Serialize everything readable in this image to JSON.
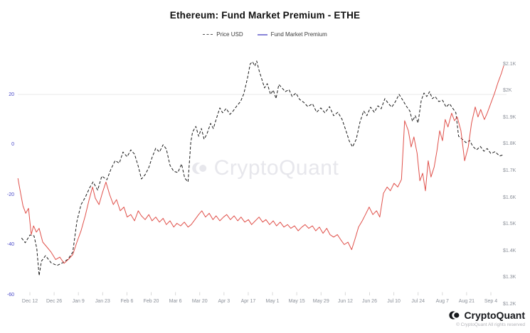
{
  "chart": {
    "title": "Ethereum: Fund Market Premium - ETHE"
  },
  "watermark": {
    "text": "CryptoQuant"
  },
  "footer": {
    "brand": "CryptoQuant",
    "copyright": "© CryptoQuant All rights reserved"
  },
  "colors": {
    "price_line": "#1a1a1a",
    "premium_line": "#e0504a",
    "legend_price_dash": "#555555",
    "legend_premium_dash": "#8884d8",
    "axis_left_text": "#4545c8",
    "axis_right_text": "#8a8f98",
    "gridline": "#e9e9e9",
    "tick_mark": "#d8d8d8",
    "watermark": "#e7e7ec"
  },
  "chart_data": {
    "type": "line",
    "title": "Ethereum: Fund Market Premium - ETHE",
    "legend_position": "top-center",
    "grid": "single horizontal gridline at premium = 20",
    "gridline_value": 20,
    "x": {
      "ticks": [
        "Dec 12",
        "Dec 26",
        "Jan 9",
        "Jan 23",
        "Feb 6",
        "Feb 20",
        "Mar 6",
        "Mar 20",
        "Apr 3",
        "Apr 17",
        "May 1",
        "May 15",
        "May 29",
        "Jun 12",
        "Jun 26",
        "Jul 10",
        "Jul 24",
        "Aug 7",
        "Aug 21",
        "Sep 4"
      ]
    },
    "y_left": {
      "label": "Fund Market Premium (%)",
      "range": [
        -65,
        25
      ],
      "ticks": [
        {
          "label": "20",
          "value": 20
        },
        {
          "label": "0",
          "value": 0
        },
        {
          "label": "-20",
          "value": -20
        },
        {
          "label": "-40",
          "value": -40
        },
        {
          "label": "-60",
          "value": -60
        }
      ]
    },
    "y_right": {
      "label": "Price USD",
      "range": [
        1150,
        2150
      ],
      "ticks": [
        {
          "label": "$2.1K",
          "value": 2100
        },
        {
          "label": "$2K",
          "value": 2000
        },
        {
          "label": "$1.9K",
          "value": 1900
        },
        {
          "label": "$1.8K",
          "value": 1800
        },
        {
          "label": "$1.7K",
          "value": 1700
        },
        {
          "label": "$1.6K",
          "value": 1600
        },
        {
          "label": "$1.5K",
          "value": 1500
        },
        {
          "label": "$1.4K",
          "value": 1400
        },
        {
          "label": "$1.3K",
          "value": 1300
        },
        {
          "label": "$1.2K",
          "value": 1200
        }
      ]
    },
    "series": [
      {
        "name": "Price USD",
        "axis": "right",
        "color": "#1a1a1a",
        "dash": true,
        "points": [
          [
            -0.018,
            1448
          ],
          [
            -0.01,
            1430
          ],
          [
            0.0,
            1459
          ],
          [
            0.009,
            1456
          ],
          [
            0.015,
            1409
          ],
          [
            0.02,
            1307
          ],
          [
            0.025,
            1361
          ],
          [
            0.034,
            1382
          ],
          [
            0.046,
            1355
          ],
          [
            0.059,
            1345
          ],
          [
            0.071,
            1355
          ],
          [
            0.083,
            1369
          ],
          [
            0.093,
            1395
          ],
          [
            0.102,
            1510
          ],
          [
            0.111,
            1573
          ],
          [
            0.12,
            1600
          ],
          [
            0.13,
            1637
          ],
          [
            0.137,
            1658
          ],
          [
            0.147,
            1627
          ],
          [
            0.156,
            1680
          ],
          [
            0.167,
            1666
          ],
          [
            0.176,
            1706
          ],
          [
            0.185,
            1738
          ],
          [
            0.194,
            1728
          ],
          [
            0.202,
            1770
          ],
          [
            0.211,
            1752
          ],
          [
            0.219,
            1778
          ],
          [
            0.227,
            1762
          ],
          [
            0.235,
            1717
          ],
          [
            0.242,
            1669
          ],
          [
            0.25,
            1685
          ],
          [
            0.258,
            1712
          ],
          [
            0.265,
            1749
          ],
          [
            0.273,
            1784
          ],
          [
            0.281,
            1770
          ],
          [
            0.289,
            1797
          ],
          [
            0.296,
            1781
          ],
          [
            0.304,
            1720
          ],
          [
            0.312,
            1698
          ],
          [
            0.321,
            1693
          ],
          [
            0.329,
            1725
          ],
          [
            0.336,
            1672
          ],
          [
            0.343,
            1658
          ],
          [
            0.349,
            1807
          ],
          [
            0.353,
            1845
          ],
          [
            0.36,
            1866
          ],
          [
            0.366,
            1829
          ],
          [
            0.372,
            1858
          ],
          [
            0.378,
            1818
          ],
          [
            0.384,
            1837
          ],
          [
            0.392,
            1877
          ],
          [
            0.398,
            1858
          ],
          [
            0.406,
            1903
          ],
          [
            0.412,
            1935
          ],
          [
            0.418,
            1917
          ],
          [
            0.426,
            1933
          ],
          [
            0.434,
            1911
          ],
          [
            0.441,
            1924
          ],
          [
            0.449,
            1943
          ],
          [
            0.457,
            1959
          ],
          [
            0.464,
            1988
          ],
          [
            0.472,
            2047
          ],
          [
            0.478,
            2100
          ],
          [
            0.483,
            2108
          ],
          [
            0.488,
            2092
          ],
          [
            0.492,
            2111
          ],
          [
            0.497,
            2076
          ],
          [
            0.503,
            2044
          ],
          [
            0.509,
            2010
          ],
          [
            0.515,
            2026
          ],
          [
            0.522,
            1986
          ],
          [
            0.528,
            2002
          ],
          [
            0.534,
            1970
          ],
          [
            0.54,
            2023
          ],
          [
            0.546,
            2012
          ],
          [
            0.554,
            1996
          ],
          [
            0.562,
            2004
          ],
          [
            0.569,
            1978
          ],
          [
            0.577,
            1991
          ],
          [
            0.585,
            1967
          ],
          [
            0.594,
            1956
          ],
          [
            0.603,
            1940
          ],
          [
            0.613,
            1951
          ],
          [
            0.622,
            1919
          ],
          [
            0.631,
            1935
          ],
          [
            0.64,
            1917
          ],
          [
            0.65,
            1940
          ],
          [
            0.659,
            1906
          ],
          [
            0.668,
            1919
          ],
          [
            0.677,
            1893
          ],
          [
            0.685,
            1853
          ],
          [
            0.693,
            1810
          ],
          [
            0.7,
            1789
          ],
          [
            0.708,
            1818
          ],
          [
            0.716,
            1882
          ],
          [
            0.724,
            1924
          ],
          [
            0.731,
            1906
          ],
          [
            0.739,
            1938
          ],
          [
            0.747,
            1919
          ],
          [
            0.755,
            1943
          ],
          [
            0.762,
            1932
          ],
          [
            0.77,
            1970
          ],
          [
            0.778,
            1951
          ],
          [
            0.785,
            1938
          ],
          [
            0.793,
            1959
          ],
          [
            0.801,
            1986
          ],
          [
            0.809,
            1964
          ],
          [
            0.816,
            1943
          ],
          [
            0.824,
            1924
          ],
          [
            0.83,
            1885
          ],
          [
            0.836,
            1906
          ],
          [
            0.842,
            1879
          ],
          [
            0.849,
            1964
          ],
          [
            0.855,
            1991
          ],
          [
            0.861,
            1978
          ],
          [
            0.867,
            1996
          ],
          [
            0.873,
            1970
          ],
          [
            0.879,
            1978
          ],
          [
            0.887,
            1959
          ],
          [
            0.895,
            1964
          ],
          [
            0.903,
            1938
          ],
          [
            0.91,
            1951
          ],
          [
            0.918,
            1932
          ],
          [
            0.924,
            1917
          ],
          [
            0.93,
            1829
          ],
          [
            0.938,
            1818
          ],
          [
            0.946,
            1805
          ],
          [
            0.954,
            1813
          ],
          [
            0.961,
            1791
          ],
          [
            0.969,
            1778
          ],
          [
            0.977,
            1791
          ],
          [
            0.985,
            1773
          ],
          [
            0.992,
            1783
          ],
          [
            1.0,
            1764
          ],
          [
            1.009,
            1771
          ],
          [
            1.019,
            1755
          ],
          [
            1.028,
            1760
          ]
        ]
      },
      {
        "name": "Fund Market Premium",
        "axis": "left",
        "color": "#e0504a",
        "dash": false,
        "points": [
          [
            -0.026,
            -13.5
          ],
          [
            -0.022,
            -17.5
          ],
          [
            -0.015,
            -24.5
          ],
          [
            -0.009,
            -27.5
          ],
          [
            -0.003,
            -25.5
          ],
          [
            0.003,
            -36
          ],
          [
            0.008,
            -32.5
          ],
          [
            0.014,
            -35
          ],
          [
            0.02,
            -33.5
          ],
          [
            0.028,
            -39
          ],
          [
            0.037,
            -41
          ],
          [
            0.046,
            -43
          ],
          [
            0.056,
            -46
          ],
          [
            0.065,
            -45
          ],
          [
            0.074,
            -47.5
          ],
          [
            0.083,
            -46
          ],
          [
            0.093,
            -44
          ],
          [
            0.102,
            -39
          ],
          [
            0.111,
            -34.5
          ],
          [
            0.12,
            -28.5
          ],
          [
            0.128,
            -22.5
          ],
          [
            0.136,
            -17
          ],
          [
            0.142,
            -21.5
          ],
          [
            0.15,
            -24
          ],
          [
            0.157,
            -19.5
          ],
          [
            0.165,
            -15
          ],
          [
            0.173,
            -20
          ],
          [
            0.181,
            -24
          ],
          [
            0.188,
            -22
          ],
          [
            0.196,
            -26.5
          ],
          [
            0.204,
            -25
          ],
          [
            0.211,
            -29
          ],
          [
            0.219,
            -28
          ],
          [
            0.227,
            -30.5
          ],
          [
            0.235,
            -26.5
          ],
          [
            0.242,
            -28.5
          ],
          [
            0.25,
            -30
          ],
          [
            0.258,
            -28
          ],
          [
            0.265,
            -30.5
          ],
          [
            0.273,
            -29
          ],
          [
            0.281,
            -31
          ],
          [
            0.289,
            -29.5
          ],
          [
            0.296,
            -32
          ],
          [
            0.304,
            -30.5
          ],
          [
            0.312,
            -33
          ],
          [
            0.319,
            -31.5
          ],
          [
            0.327,
            -32.5
          ],
          [
            0.335,
            -31
          ],
          [
            0.343,
            -33
          ],
          [
            0.35,
            -32
          ],
          [
            0.358,
            -30
          ],
          [
            0.366,
            -28
          ],
          [
            0.373,
            -26.5
          ],
          [
            0.381,
            -29
          ],
          [
            0.389,
            -27.5
          ],
          [
            0.397,
            -30
          ],
          [
            0.404,
            -28.5
          ],
          [
            0.412,
            -30.5
          ],
          [
            0.42,
            -29
          ],
          [
            0.427,
            -28
          ],
          [
            0.435,
            -30
          ],
          [
            0.443,
            -28.5
          ],
          [
            0.451,
            -30.5
          ],
          [
            0.458,
            -29
          ],
          [
            0.466,
            -31
          ],
          [
            0.474,
            -30
          ],
          [
            0.481,
            -32
          ],
          [
            0.489,
            -30.5
          ],
          [
            0.497,
            -29
          ],
          [
            0.505,
            -31
          ],
          [
            0.512,
            -30
          ],
          [
            0.52,
            -32
          ],
          [
            0.528,
            -30.5
          ],
          [
            0.535,
            -32.5
          ],
          [
            0.543,
            -31
          ],
          [
            0.551,
            -33
          ],
          [
            0.559,
            -32
          ],
          [
            0.566,
            -33.5
          ],
          [
            0.574,
            -32.5
          ],
          [
            0.582,
            -34.5
          ],
          [
            0.59,
            -33
          ],
          [
            0.597,
            -32
          ],
          [
            0.605,
            -33.5
          ],
          [
            0.613,
            -32.5
          ],
          [
            0.62,
            -34.5
          ],
          [
            0.628,
            -33
          ],
          [
            0.636,
            -35.5
          ],
          [
            0.644,
            -33.5
          ],
          [
            0.651,
            -36
          ],
          [
            0.659,
            -37
          ],
          [
            0.667,
            -36
          ],
          [
            0.674,
            -38
          ],
          [
            0.682,
            -40
          ],
          [
            0.69,
            -39
          ],
          [
            0.698,
            -42
          ],
          [
            0.705,
            -38
          ],
          [
            0.713,
            -33
          ],
          [
            0.721,
            -30.5
          ],
          [
            0.728,
            -28
          ],
          [
            0.736,
            -25
          ],
          [
            0.744,
            -28
          ],
          [
            0.752,
            -26.5
          ],
          [
            0.759,
            -29
          ],
          [
            0.767,
            -19.5
          ],
          [
            0.775,
            -17
          ],
          [
            0.782,
            -18.5
          ],
          [
            0.79,
            -15.5
          ],
          [
            0.798,
            -17
          ],
          [
            0.806,
            -14
          ],
          [
            0.813,
            9.5
          ],
          [
            0.821,
            5.5
          ],
          [
            0.827,
            -1
          ],
          [
            0.833,
            3
          ],
          [
            0.84,
            -3.5
          ],
          [
            0.846,
            -14.5
          ],
          [
            0.852,
            -11.5
          ],
          [
            0.858,
            -18.5
          ],
          [
            0.864,
            -6.5
          ],
          [
            0.87,
            -13
          ],
          [
            0.877,
            -9
          ],
          [
            0.883,
            -2.5
          ],
          [
            0.889,
            5.5
          ],
          [
            0.895,
            1.5
          ],
          [
            0.901,
            10
          ],
          [
            0.907,
            7
          ],
          [
            0.915,
            12.5
          ],
          [
            0.921,
            9.5
          ],
          [
            0.927,
            11
          ],
          [
            0.935,
            5.5
          ],
          [
            0.943,
            -6.5
          ],
          [
            0.951,
            -1
          ],
          [
            0.958,
            8.5
          ],
          [
            0.966,
            15
          ],
          [
            0.972,
            11
          ],
          [
            0.978,
            14
          ],
          [
            0.986,
            10
          ],
          [
            0.992,
            12.5
          ],
          [
            1.0,
            16.5
          ],
          [
            1.008,
            20.5
          ],
          [
            1.015,
            24.5
          ],
          [
            1.023,
            28.5
          ],
          [
            1.028,
            31.5
          ]
        ]
      }
    ]
  }
}
